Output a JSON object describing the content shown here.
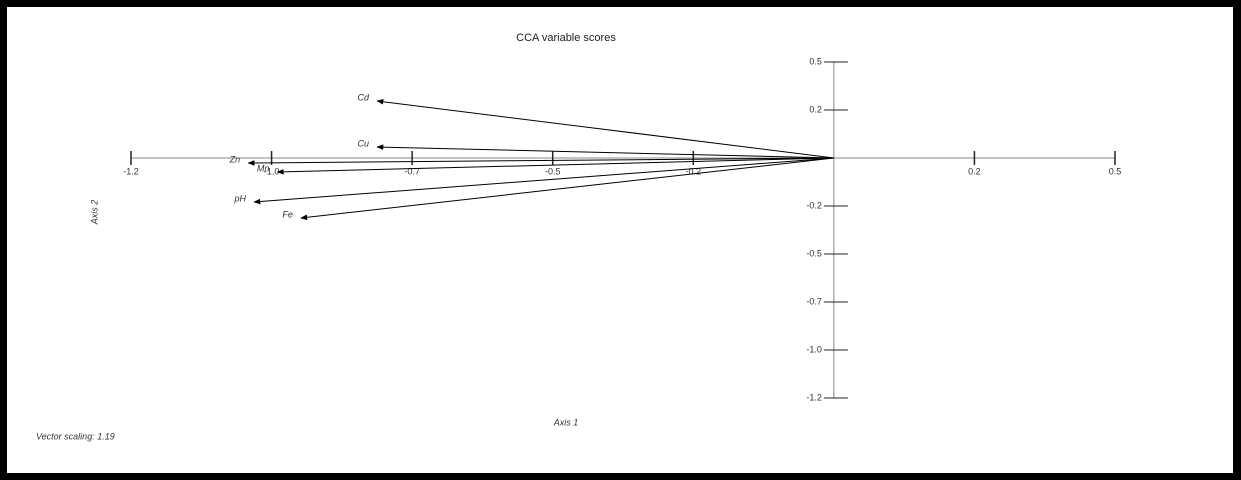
{
  "chart_data": {
    "type": "biplot",
    "title": "CCA variable scores",
    "x_label": "Axis 1",
    "y_label": "Axis 2",
    "note": "Vector scaling: 1.19",
    "categories": [
      "Cd",
      "Cu",
      "Zn",
      "Mn",
      "pH",
      "Fe"
    ],
    "x": [
      -0.78,
      -0.78,
      -1.0,
      -0.95,
      -0.99,
      -0.91
    ],
    "values": [
      0.285,
      0.055,
      -0.025,
      -0.07,
      -0.22,
      -0.3
    ],
    "color": "#000000",
    "xlim": [
      -1.2,
      0.48
    ],
    "ylim": [
      -1.2,
      0.48
    ],
    "xticks": [
      {
        "value": -1.2,
        "label": "-1.2"
      },
      {
        "value": -0.96,
        "label": "-1.0"
      },
      {
        "value": -0.72,
        "label": "-0.7"
      },
      {
        "value": -0.48,
        "label": "-0.5"
      },
      {
        "value": -0.24,
        "label": "-0.2"
      },
      {
        "value": 0.24,
        "label": "0.2"
      },
      {
        "value": 0.48,
        "label": "0.5"
      }
    ],
    "yticks": [
      {
        "value": 0.48,
        "label": "0.5"
      },
      {
        "value": 0.24,
        "label": "0.2"
      },
      {
        "value": -0.24,
        "label": "-0.2"
      },
      {
        "value": -0.48,
        "label": "-0.5"
      },
      {
        "value": -0.72,
        "label": "-0.7"
      },
      {
        "value": -0.96,
        "label": "-1.0"
      },
      {
        "value": -1.2,
        "label": "-1.2"
      }
    ]
  }
}
